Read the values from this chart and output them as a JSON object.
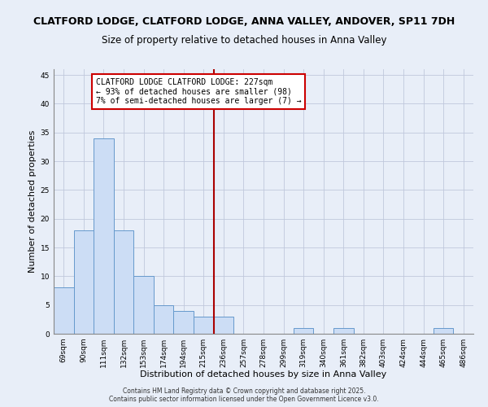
{
  "title": "CLATFORD LODGE, CLATFORD LODGE, ANNA VALLEY, ANDOVER, SP11 7DH",
  "subtitle": "Size of property relative to detached houses in Anna Valley",
  "xlabel": "Distribution of detached houses by size in Anna Valley",
  "ylabel": "Number of detached properties",
  "bar_labels": [
    "69sqm",
    "90sqm",
    "111sqm",
    "132sqm",
    "153sqm",
    "174sqm",
    "194sqm",
    "215sqm",
    "236sqm",
    "257sqm",
    "278sqm",
    "299sqm",
    "319sqm",
    "340sqm",
    "361sqm",
    "382sqm",
    "403sqm",
    "424sqm",
    "444sqm",
    "465sqm",
    "486sqm"
  ],
  "bar_values": [
    8,
    18,
    34,
    18,
    10,
    5,
    4,
    3,
    3,
    0,
    0,
    0,
    1,
    0,
    1,
    0,
    0,
    0,
    0,
    1,
    0
  ],
  "bar_color": "#ccddf5",
  "bar_edge_color": "#6699cc",
  "bar_width": 1.0,
  "ylim": [
    0,
    46
  ],
  "yticks": [
    0,
    5,
    10,
    15,
    20,
    25,
    30,
    35,
    40,
    45
  ],
  "vline_x": 7.5,
  "vline_color": "#aa0000",
  "annotation_text": "CLATFORD LODGE CLATFORD LODGE: 227sqm\n← 93% of detached houses are smaller (98)\n7% of semi-detached houses are larger (7) →",
  "background_color": "#e8eef8",
  "grid_color": "#c0c8dc",
  "footer_line1": "Contains HM Land Registry data © Crown copyright and database right 2025.",
  "footer_line2": "Contains public sector information licensed under the Open Government Licence v3.0.",
  "title_fontsize": 9,
  "subtitle_fontsize": 8.5,
  "label_fontsize": 8,
  "tick_fontsize": 6.5,
  "annotation_fontsize": 7,
  "footer_fontsize": 5.5
}
